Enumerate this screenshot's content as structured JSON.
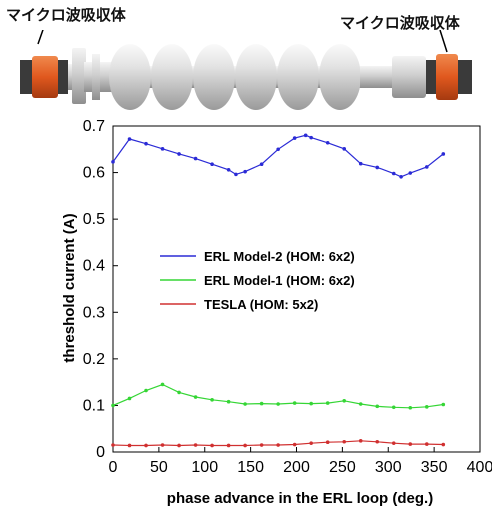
{
  "figure": {
    "absorber_label_left": "マイクロ波吸収体",
    "absorber_label_right": "マイクロ波吸収体"
  },
  "colors": {
    "model2": "#2b2bd6",
    "model1": "#35d635",
    "tesla": "#d03030",
    "absorber": "#e8662a",
    "cavity": "#c9c9c9"
  },
  "chart_data": {
    "type": "line",
    "xlabel": "phase advance in the ERL loop (deg.)",
    "ylabel": "threshold current (A)",
    "xlim": [
      0,
      400
    ],
    "ylim": [
      0,
      0.7
    ],
    "xticks": [
      "0",
      "50",
      "100",
      "150",
      "200",
      "250",
      "300",
      "350",
      "400"
    ],
    "yticks": [
      "0",
      "0.1",
      "0.2",
      "0.3",
      "0.4",
      "0.5",
      "0.6",
      "0.7"
    ],
    "grid": false,
    "legend_position": "center-left",
    "series": [
      {
        "name": "ERL Model-2 (HOM: 6x2)",
        "color": "#2b2bd6",
        "x": [
          0,
          18,
          36,
          54,
          72,
          90,
          108,
          126,
          134,
          144,
          162,
          180,
          198,
          210,
          216,
          234,
          252,
          270,
          288,
          306,
          314,
          324,
          342,
          360
        ],
        "y": [
          0.623,
          0.672,
          0.662,
          0.651,
          0.64,
          0.63,
          0.618,
          0.606,
          0.596,
          0.602,
          0.618,
          0.65,
          0.674,
          0.68,
          0.675,
          0.664,
          0.651,
          0.619,
          0.611,
          0.598,
          0.591,
          0.599,
          0.612,
          0.64
        ]
      },
      {
        "name": "ERL Model-1 (HOM: 6x2)",
        "color": "#35d635",
        "x": [
          0,
          18,
          36,
          54,
          72,
          90,
          108,
          126,
          144,
          162,
          180,
          198,
          216,
          234,
          252,
          270,
          288,
          306,
          324,
          342,
          360
        ],
        "y": [
          0.1,
          0.115,
          0.132,
          0.145,
          0.128,
          0.118,
          0.112,
          0.108,
          0.103,
          0.104,
          0.103,
          0.105,
          0.104,
          0.105,
          0.11,
          0.103,
          0.098,
          0.096,
          0.095,
          0.097,
          0.102
        ]
      },
      {
        "name": "TESLA (HOM: 5x2)",
        "color": "#d03030",
        "x": [
          0,
          18,
          36,
          54,
          72,
          90,
          108,
          126,
          144,
          162,
          180,
          198,
          216,
          234,
          252,
          270,
          288,
          306,
          324,
          342,
          360
        ],
        "y": [
          0.015,
          0.014,
          0.014,
          0.015,
          0.014,
          0.015,
          0.014,
          0.014,
          0.014,
          0.015,
          0.015,
          0.016,
          0.019,
          0.021,
          0.022,
          0.024,
          0.022,
          0.019,
          0.017,
          0.017,
          0.016
        ]
      }
    ]
  }
}
